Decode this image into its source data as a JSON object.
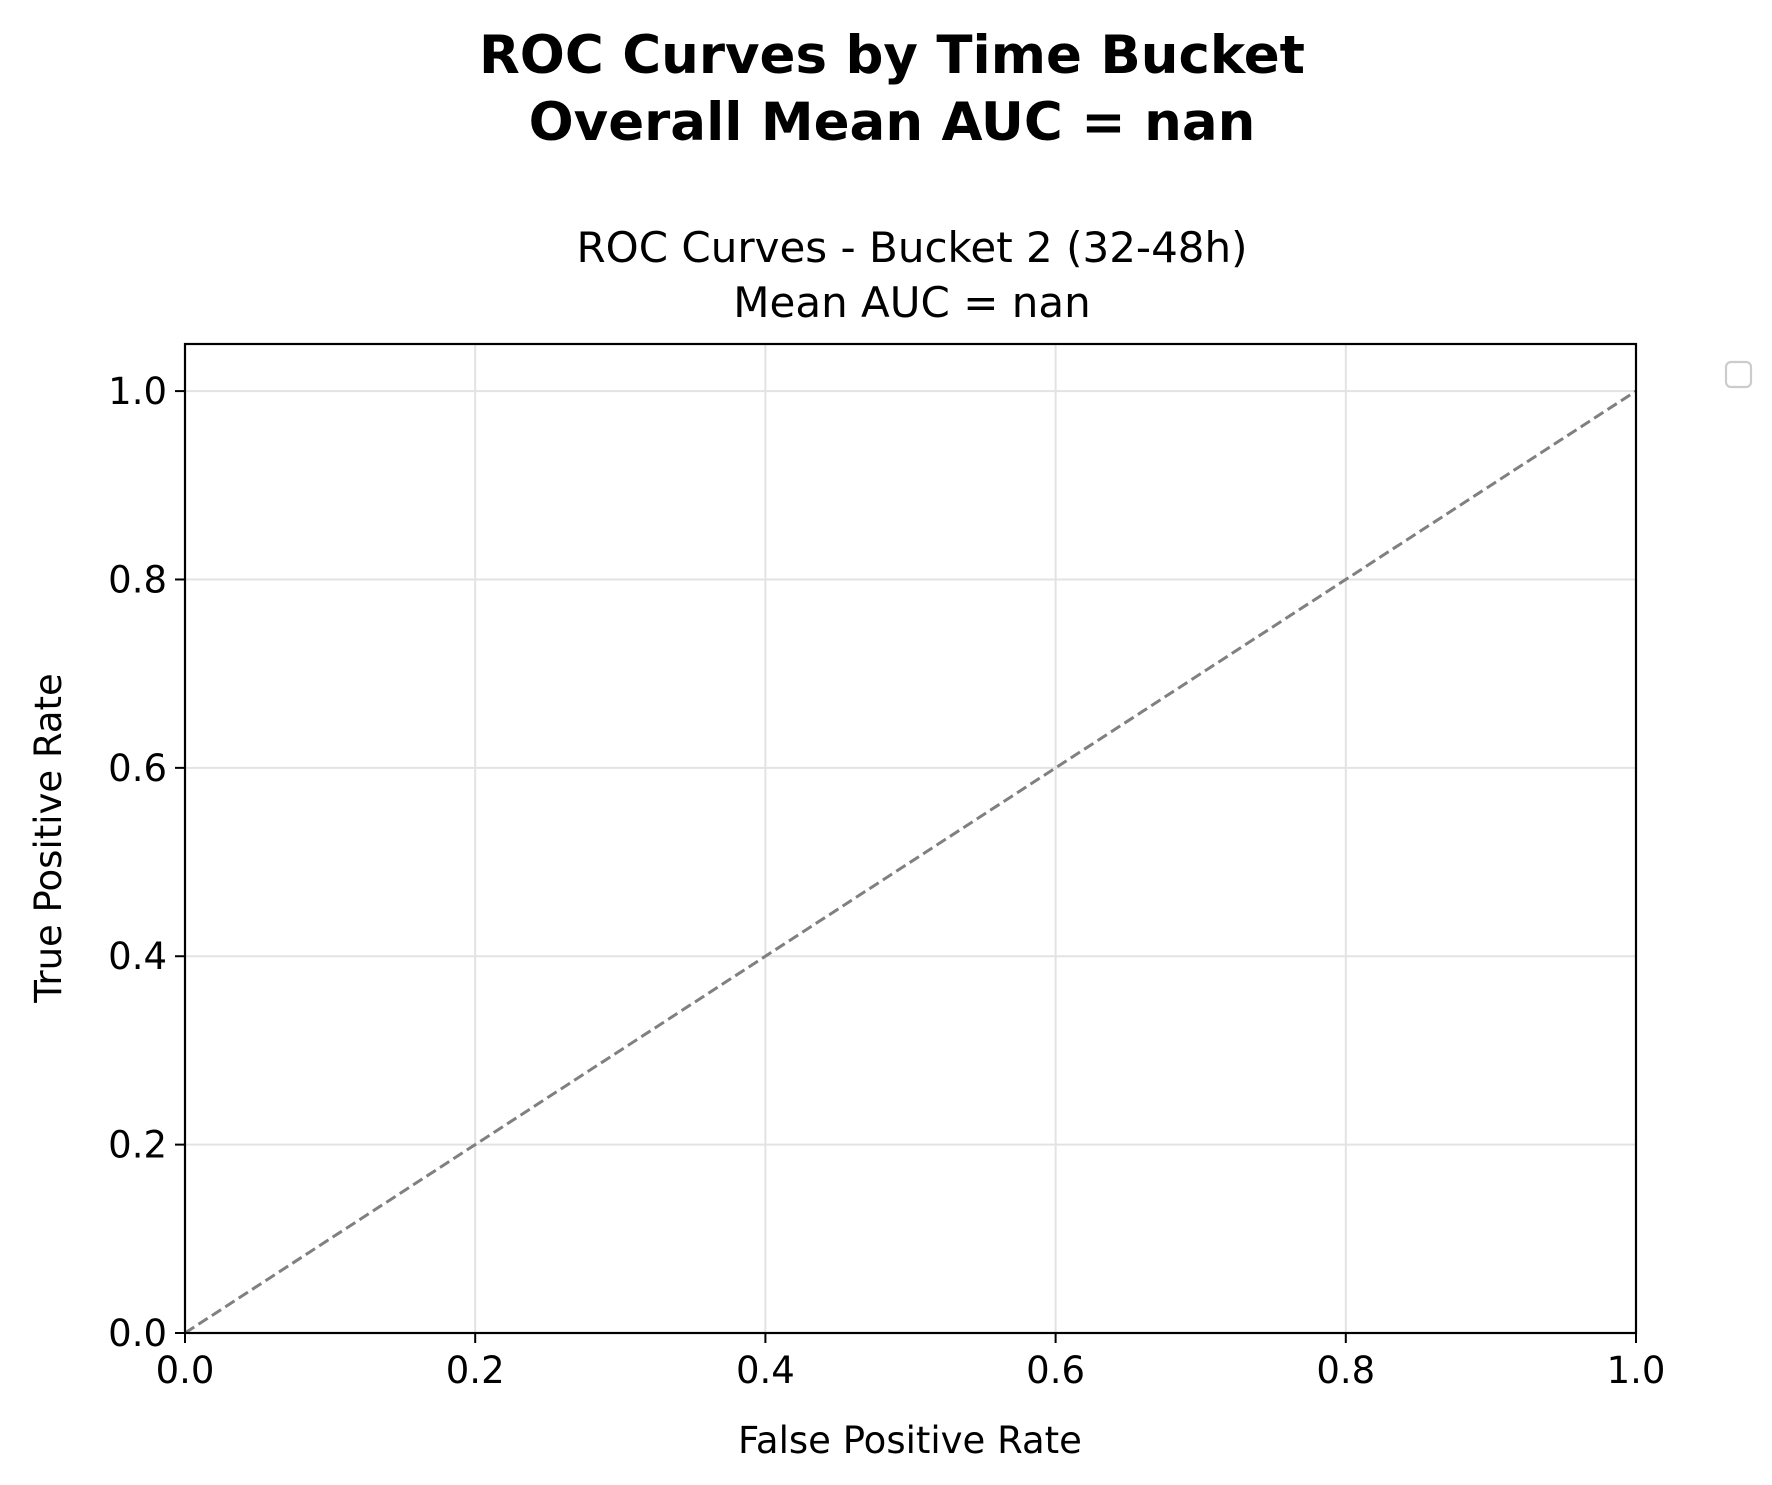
{
  "figure": {
    "suptitle_line1": "ROC Curves by Time Bucket",
    "suptitle_line2": "Overall Mean AUC = nan"
  },
  "chart_data": {
    "type": "line",
    "title_line1": "ROC Curves - Bucket 2 (32-48h)",
    "title_line2": "Mean AUC = nan",
    "xlabel": "False Positive Rate",
    "ylabel": "True Positive Rate",
    "xlim": [
      0.0,
      1.0
    ],
    "ylim": [
      0.0,
      1.05
    ],
    "xticks": [
      "0.0",
      "0.2",
      "0.4",
      "0.6",
      "0.8",
      "1.0"
    ],
    "yticks": [
      "0.0",
      "0.2",
      "0.4",
      "0.6",
      "0.8",
      "1.0"
    ],
    "grid": true,
    "legend": {
      "placement": "outside-right",
      "entries": []
    },
    "series": [
      {
        "style": "dashed",
        "color": "#808080",
        "x": [
          0.0,
          1.0
        ],
        "y": [
          0.0,
          1.0
        ]
      }
    ]
  }
}
